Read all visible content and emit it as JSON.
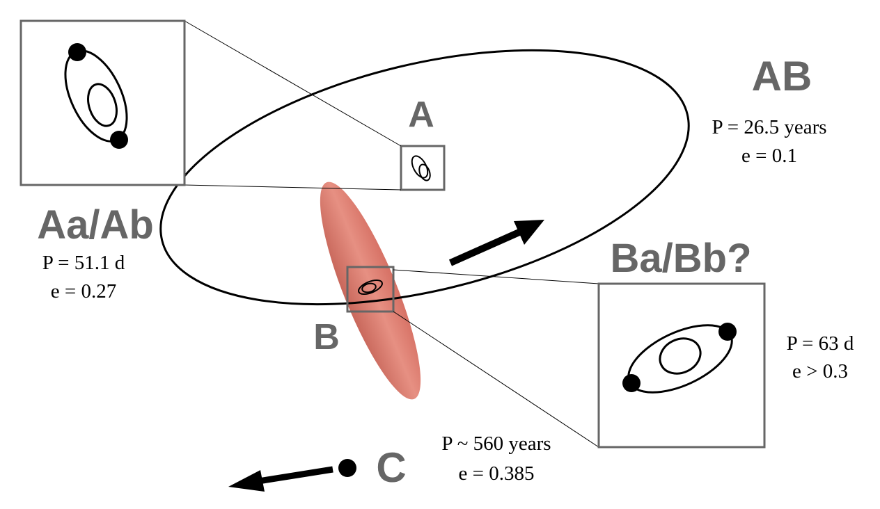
{
  "systems": {
    "AB": {
      "name": "AB",
      "period": "P = 26.5 years",
      "ecc": "e = 0.1"
    },
    "A": {
      "name": "A"
    },
    "AaAb": {
      "name": "Aa/Ab",
      "period": "P = 51.1 d",
      "ecc": "e = 0.27"
    },
    "B": {
      "name": "B"
    },
    "BaBb": {
      "name": "Ba/Bb?",
      "period": "P = 63 d",
      "ecc": "e > 0.3"
    },
    "C": {
      "name": "C",
      "period": "P ~ 560 years",
      "ecc": "e = 0.385"
    }
  },
  "colors": {
    "label_gray": "#666666",
    "box_gray": "#666666",
    "ellipse_red": "#d9776a"
  }
}
